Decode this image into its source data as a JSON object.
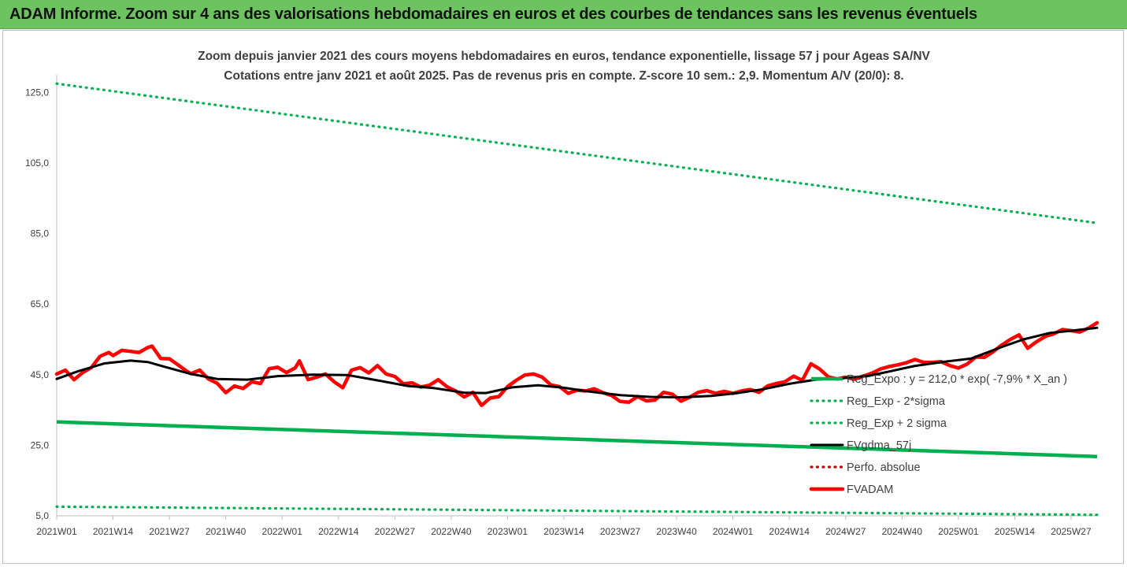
{
  "banner": {
    "title": "ADAM Informe. Zoom sur 4 ans des valorisations hebdomadaires en euros et des courbes de tendances sans les revenus éventuels"
  },
  "chart_data": {
    "type": "line",
    "title_line1": "Zoom depuis janvier 2021 des cours moyens hebdomadaires en euros, tendance exponentielle, lissage 57 j pour Ageas SA/NV",
    "title_line2": "Cotations entre janv 2021 et août 2025.  Pas de revenus pris en compte. Z-score 10 sem.: 2,9. Momentum A/V (20/0): 8.",
    "ylim": [
      5,
      130
    ],
    "y_ticks": [
      "5,0",
      "25,0",
      "45,0",
      "65,0",
      "85,0",
      "105,0",
      "125,0"
    ],
    "y_tick_values": [
      5,
      25,
      45,
      65,
      85,
      105,
      125
    ],
    "x_week_range": [
      1,
      241
    ],
    "x_ticks": [
      "2021W01",
      "2021W14",
      "2021W27",
      "2021W40",
      "2022W01",
      "2022W14",
      "2022W27",
      "2022W40",
      "2023W01",
      "2023W14",
      "2023W27",
      "2023W40",
      "2024W01",
      "2024W14",
      "2024W27",
      "2024W40",
      "2025W01",
      "2025W14",
      "2025W27"
    ],
    "x_tick_weeks": [
      1,
      14,
      27,
      40,
      53,
      66,
      79,
      92,
      105,
      118,
      131,
      144,
      157,
      170,
      183,
      196,
      209,
      222,
      235
    ],
    "legend_position": "inside-right",
    "series": [
      {
        "name": "Reg_Expo : y = 212,0 * exp( -7,9% *  X_an )",
        "color": "#00b050",
        "style": "solid",
        "points": [
          [
            1,
            31.6
          ],
          [
            241,
            21.8
          ]
        ]
      },
      {
        "name": "Reg_Exp - 2*sigma",
        "color": "#00b050",
        "style": "dotted",
        "points": [
          [
            1,
            7.6
          ],
          [
            241,
            5.3
          ]
        ]
      },
      {
        "name": "Reg_Exp + 2 sigma",
        "color": "#00b050",
        "style": "dotted",
        "points": [
          [
            1,
            127.5
          ],
          [
            241,
            88.0
          ]
        ]
      },
      {
        "name": "FVgdma_57j",
        "color": "#000000",
        "style": "solid",
        "points": [
          [
            1,
            43.8
          ],
          [
            6,
            46.0
          ],
          [
            12,
            48.2
          ],
          [
            18,
            49.0
          ],
          [
            22,
            48.6
          ],
          [
            26,
            47.2
          ],
          [
            32,
            45.2
          ],
          [
            38,
            43.8
          ],
          [
            45,
            43.6
          ],
          [
            52,
            44.6
          ],
          [
            60,
            45.0
          ],
          [
            68,
            44.9
          ],
          [
            75,
            43.4
          ],
          [
            82,
            41.8
          ],
          [
            88,
            41.2
          ],
          [
            95,
            39.9
          ],
          [
            100,
            39.8
          ],
          [
            106,
            41.4
          ],
          [
            112,
            42.0
          ],
          [
            118,
            41.3
          ],
          [
            124,
            40.2
          ],
          [
            131,
            39.2
          ],
          [
            138,
            38.7
          ],
          [
            145,
            38.6
          ],
          [
            152,
            39.0
          ],
          [
            158,
            39.8
          ],
          [
            164,
            40.9
          ],
          [
            170,
            42.4
          ],
          [
            176,
            43.6
          ],
          [
            182,
            44.0
          ],
          [
            188,
            44.6
          ],
          [
            193,
            45.9
          ],
          [
            199,
            47.5
          ],
          [
            206,
            48.7
          ],
          [
            212,
            49.6
          ],
          [
            218,
            52.4
          ],
          [
            224,
            55.0
          ],
          [
            230,
            56.8
          ],
          [
            236,
            57.6
          ],
          [
            241,
            58.3
          ]
        ]
      },
      {
        "name": "Perfo. absolue",
        "color": "#c00000",
        "style": "dotted",
        "points": []
      },
      {
        "name": "FVADAM",
        "color": "#ff0000",
        "style": "solid-thick",
        "points": [
          [
            1,
            45.2
          ],
          [
            3,
            46.3
          ],
          [
            5,
            43.6
          ],
          [
            7,
            45.6
          ],
          [
            9,
            47.0
          ],
          [
            11,
            50.2
          ],
          [
            13,
            51.3
          ],
          [
            14,
            50.4
          ],
          [
            16,
            51.9
          ],
          [
            18,
            51.6
          ],
          [
            20,
            51.3
          ],
          [
            22,
            52.7
          ],
          [
            23,
            53.1
          ],
          [
            25,
            49.6
          ],
          [
            27,
            49.5
          ],
          [
            29,
            47.8
          ],
          [
            31,
            46.0
          ],
          [
            32,
            45.3
          ],
          [
            34,
            46.3
          ],
          [
            36,
            43.8
          ],
          [
            38,
            42.6
          ],
          [
            40,
            39.9
          ],
          [
            42,
            41.8
          ],
          [
            44,
            41.1
          ],
          [
            46,
            43.0
          ],
          [
            48,
            42.5
          ],
          [
            50,
            46.7
          ],
          [
            52,
            47.1
          ],
          [
            54,
            45.6
          ],
          [
            56,
            46.9
          ],
          [
            57,
            48.9
          ],
          [
            59,
            43.6
          ],
          [
            61,
            44.3
          ],
          [
            63,
            45.2
          ],
          [
            65,
            43.0
          ],
          [
            67,
            41.3
          ],
          [
            69,
            46.3
          ],
          [
            71,
            47.0
          ],
          [
            73,
            45.5
          ],
          [
            75,
            47.6
          ],
          [
            77,
            45.2
          ],
          [
            79,
            44.5
          ],
          [
            81,
            42.4
          ],
          [
            83,
            42.7
          ],
          [
            85,
            41.5
          ],
          [
            87,
            42.0
          ],
          [
            89,
            43.6
          ],
          [
            91,
            41.6
          ],
          [
            93,
            40.4
          ],
          [
            95,
            38.7
          ],
          [
            97,
            40.0
          ],
          [
            99,
            36.3
          ],
          [
            101,
            38.4
          ],
          [
            103,
            38.8
          ],
          [
            105,
            41.6
          ],
          [
            107,
            43.4
          ],
          [
            109,
            44.9
          ],
          [
            111,
            45.2
          ],
          [
            113,
            44.3
          ],
          [
            115,
            42.1
          ],
          [
            117,
            41.6
          ],
          [
            119,
            39.7
          ],
          [
            121,
            40.6
          ],
          [
            123,
            40.4
          ],
          [
            125,
            41.0
          ],
          [
            127,
            39.9
          ],
          [
            129,
            39.1
          ],
          [
            131,
            37.4
          ],
          [
            133,
            37.2
          ],
          [
            135,
            38.8
          ],
          [
            137,
            37.6
          ],
          [
            139,
            37.8
          ],
          [
            141,
            40.0
          ],
          [
            143,
            39.5
          ],
          [
            145,
            37.5
          ],
          [
            147,
            38.6
          ],
          [
            149,
            40.0
          ],
          [
            151,
            40.5
          ],
          [
            153,
            39.7
          ],
          [
            155,
            40.3
          ],
          [
            157,
            39.7
          ],
          [
            159,
            40.4
          ],
          [
            161,
            40.8
          ],
          [
            163,
            40.0
          ],
          [
            165,
            41.8
          ],
          [
            167,
            42.5
          ],
          [
            169,
            43.0
          ],
          [
            171,
            44.6
          ],
          [
            173,
            43.4
          ],
          [
            175,
            48.1
          ],
          [
            177,
            46.6
          ],
          [
            179,
            44.4
          ],
          [
            181,
            43.8
          ],
          [
            183,
            44.3
          ],
          [
            185,
            43.7
          ],
          [
            187,
            44.6
          ],
          [
            189,
            45.4
          ],
          [
            191,
            46.6
          ],
          [
            193,
            47.3
          ],
          [
            195,
            47.8
          ],
          [
            197,
            48.4
          ],
          [
            199,
            49.3
          ],
          [
            201,
            48.5
          ],
          [
            203,
            48.5
          ],
          [
            205,
            48.7
          ],
          [
            207,
            47.6
          ],
          [
            209,
            46.9
          ],
          [
            211,
            48.0
          ],
          [
            213,
            50.0
          ],
          [
            215,
            49.9
          ],
          [
            217,
            51.5
          ],
          [
            219,
            53.4
          ],
          [
            221,
            55.0
          ],
          [
            223,
            56.3
          ],
          [
            225,
            52.5
          ],
          [
            227,
            54.3
          ],
          [
            229,
            55.8
          ],
          [
            231,
            56.6
          ],
          [
            233,
            57.8
          ],
          [
            235,
            57.5
          ],
          [
            237,
            57.1
          ],
          [
            239,
            58.2
          ],
          [
            241,
            59.7
          ]
        ]
      }
    ]
  }
}
